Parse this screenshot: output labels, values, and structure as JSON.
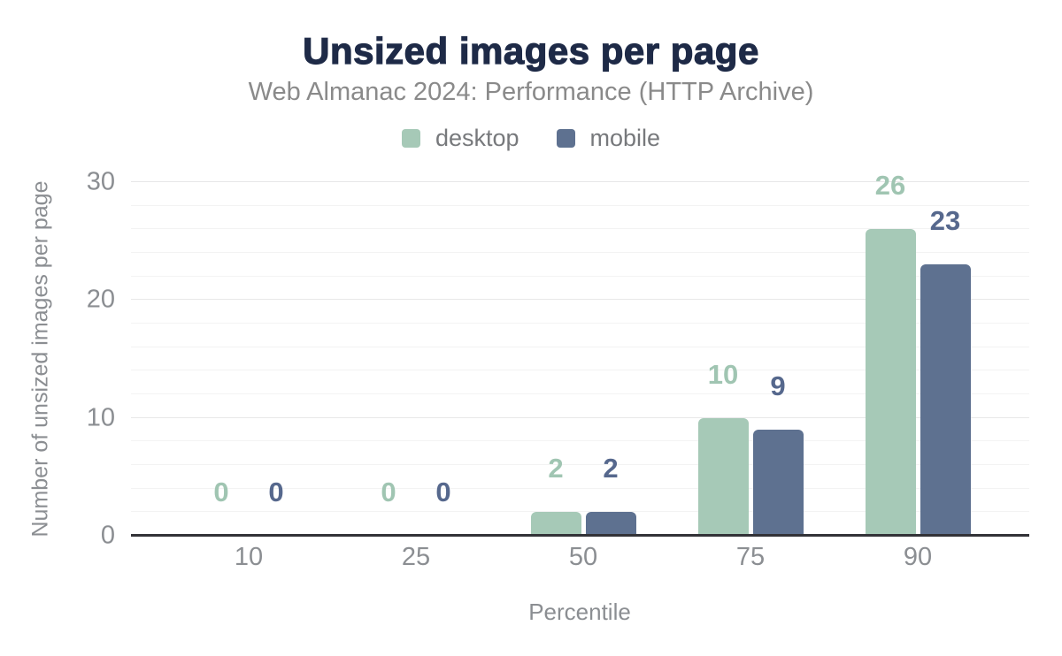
{
  "figure": {
    "title": "Unsized images per page",
    "subtitle": "Web Almanac 2024: Performance (HTTP Archive)"
  },
  "chart_data": {
    "type": "bar",
    "title": "Unsized images per page",
    "subtitle": "Web Almanac 2024: Performance (HTTP Archive)",
    "xlabel": "Percentile",
    "ylabel": "Number of unsized images per page",
    "categories": [
      "10",
      "25",
      "50",
      "75",
      "90"
    ],
    "series": [
      {
        "name": "desktop",
        "values": [
          0,
          0,
          2,
          10,
          26
        ],
        "color": "#a6c9b7",
        "label_color": "#a0c5b2"
      },
      {
        "name": "mobile",
        "values": [
          0,
          0,
          2,
          9,
          23
        ],
        "color": "#5e7190",
        "label_color": "#56688d"
      }
    ],
    "ylim": [
      0,
      30
    ],
    "yticks": [
      0,
      10,
      20,
      30
    ],
    "minor_grid_step": 2,
    "grid": true,
    "legend_position": "top"
  },
  "colors": {
    "background": "#ffffff",
    "title_text": "#1e2a47",
    "subtitle_text": "#8a8a8a",
    "axis_text": "#8b8e92",
    "legend_text": "#77797c",
    "axis_line": "#323237",
    "grid_major": "#e7e7e8",
    "grid_minor": "#f3f3f3"
  }
}
